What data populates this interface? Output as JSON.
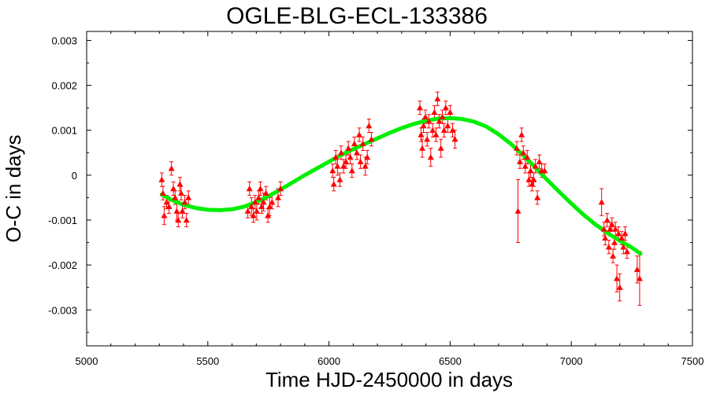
{
  "chart_data": {
    "type": "scatter",
    "title": "OGLE-BLG-ECL-133386",
    "xlabel": "Time HJD-2450000 in days",
    "ylabel": "O-C in days",
    "xlim": [
      5000,
      7500
    ],
    "ylim": [
      -0.0038,
      0.0032
    ],
    "xticks": [
      5000,
      5500,
      6000,
      6500,
      7000,
      7500
    ],
    "xtick_labels": [
      "5000",
      "5500",
      "6000",
      "6500",
      "7000",
      "7500"
    ],
    "yticks": [
      0.003,
      0.002,
      0.001,
      0,
      -0.001,
      -0.002,
      -0.003
    ],
    "ytick_labels": [
      "0.003",
      "0.002",
      "0.001",
      "0",
      "-0.001",
      "-0.002",
      "-0.003"
    ],
    "grid": false,
    "legend": "none",
    "series": [
      {
        "kind": "points-with-errorbars",
        "color": "#ff0000",
        "marker": "triangle",
        "points": [
          {
            "x": 5310,
            "y": -0.0001,
            "err": 0.00015
          },
          {
            "x": 5315,
            "y": -0.0004,
            "err": 0.00015
          },
          {
            "x": 5320,
            "y": -0.0009,
            "err": 0.0002
          },
          {
            "x": 5330,
            "y": -0.0006,
            "err": 0.00015
          },
          {
            "x": 5340,
            "y": -0.0007,
            "err": 0.00015
          },
          {
            "x": 5350,
            "y": 0.00015,
            "err": 0.00015
          },
          {
            "x": 5358,
            "y": -0.0003,
            "err": 0.00015
          },
          {
            "x": 5365,
            "y": -0.0005,
            "err": 0.00015
          },
          {
            "x": 5372,
            "y": -0.0008,
            "err": 0.0002
          },
          {
            "x": 5378,
            "y": -0.001,
            "err": 0.00015
          },
          {
            "x": 5385,
            "y": -0.0002,
            "err": 0.00015
          },
          {
            "x": 5390,
            "y": -0.0004,
            "err": 0.00015
          },
          {
            "x": 5395,
            "y": -0.0008,
            "err": 0.00015
          },
          {
            "x": 5405,
            "y": -0.0006,
            "err": 0.00015
          },
          {
            "x": 5412,
            "y": -0.001,
            "err": 0.00015
          },
          {
            "x": 5420,
            "y": -0.0005,
            "err": 0.00015
          },
          {
            "x": 5665,
            "y": -0.0008,
            "err": 0.00015
          },
          {
            "x": 5672,
            "y": -0.0003,
            "err": 0.00015
          },
          {
            "x": 5680,
            "y": -0.0007,
            "err": 0.0002
          },
          {
            "x": 5688,
            "y": -0.0009,
            "err": 0.00015
          },
          {
            "x": 5695,
            "y": -0.0006,
            "err": 0.00015
          },
          {
            "x": 5702,
            "y": -0.0008,
            "err": 0.0002
          },
          {
            "x": 5710,
            "y": -0.0005,
            "err": 0.00015
          },
          {
            "x": 5717,
            "y": -0.0003,
            "err": 0.00015
          },
          {
            "x": 5722,
            "y": -0.0007,
            "err": 0.00015
          },
          {
            "x": 5730,
            "y": -0.0006,
            "err": 0.0002
          },
          {
            "x": 5740,
            "y": -0.0004,
            "err": 0.00015
          },
          {
            "x": 5748,
            "y": -0.0009,
            "err": 0.00015
          },
          {
            "x": 5755,
            "y": -0.0007,
            "err": 0.0002
          },
          {
            "x": 5765,
            "y": -0.0006,
            "err": 0.00015
          },
          {
            "x": 5790,
            "y": -0.0005,
            "err": 0.0002
          },
          {
            "x": 5800,
            "y": -0.0003,
            "err": 0.00015
          },
          {
            "x": 6015,
            "y": 0.0001,
            "err": 0.00015
          },
          {
            "x": 6020,
            "y": -0.0002,
            "err": 0.00015
          },
          {
            "x": 6028,
            "y": 0.0004,
            "err": 0.00015
          },
          {
            "x": 6035,
            "y": 0.0002,
            "err": 0.0002
          },
          {
            "x": 6045,
            "y": -0.0001,
            "err": 0.00015
          },
          {
            "x": 6050,
            "y": 0.0005,
            "err": 0.00015
          },
          {
            "x": 6060,
            "y": 0.0002,
            "err": 0.00015
          },
          {
            "x": 6070,
            "y": 0.0003,
            "err": 0.00015
          },
          {
            "x": 6080,
            "y": 0.0006,
            "err": 0.00015
          },
          {
            "x": 6088,
            "y": 0.0004,
            "err": 0.00015
          },
          {
            "x": 6095,
            "y": 0.0001,
            "err": 0.00015
          },
          {
            "x": 6105,
            "y": 0.0007,
            "err": 0.00015
          },
          {
            "x": 6115,
            "y": 0.0005,
            "err": 0.00015
          },
          {
            "x": 6125,
            "y": 0.0009,
            "err": 0.00015
          },
          {
            "x": 6130,
            "y": 0.0003,
            "err": 0.00015
          },
          {
            "x": 6140,
            "y": 0.0007,
            "err": 0.00015
          },
          {
            "x": 6150,
            "y": 0.0002,
            "err": 0.0002
          },
          {
            "x": 6158,
            "y": 0.0004,
            "err": 0.00015
          },
          {
            "x": 6165,
            "y": 0.0011,
            "err": 0.00015
          },
          {
            "x": 6175,
            "y": 0.0008,
            "err": 0.00015
          },
          {
            "x": 6375,
            "y": 0.0015,
            "err": 0.00015
          },
          {
            "x": 6380,
            "y": 0.0009,
            "err": 0.00015
          },
          {
            "x": 6385,
            "y": 0.0006,
            "err": 0.0002
          },
          {
            "x": 6390,
            "y": 0.0011,
            "err": 0.00015
          },
          {
            "x": 6398,
            "y": 0.0013,
            "err": 0.00015
          },
          {
            "x": 6405,
            "y": 0.0008,
            "err": 0.00015
          },
          {
            "x": 6412,
            "y": 0.0012,
            "err": 0.00015
          },
          {
            "x": 6420,
            "y": 0.0004,
            "err": 0.0002
          },
          {
            "x": 6428,
            "y": 0.001,
            "err": 0.00015
          },
          {
            "x": 6435,
            "y": 0.0014,
            "err": 0.00015
          },
          {
            "x": 6442,
            "y": 0.0009,
            "err": 0.00015
          },
          {
            "x": 6448,
            "y": 0.0017,
            "err": 0.00015
          },
          {
            "x": 6455,
            "y": 0.0012,
            "err": 0.00015
          },
          {
            "x": 6462,
            "y": 0.0006,
            "err": 0.0002
          },
          {
            "x": 6468,
            "y": 0.0013,
            "err": 0.00015
          },
          {
            "x": 6475,
            "y": 0.001,
            "err": 0.00015
          },
          {
            "x": 6482,
            "y": 0.0015,
            "err": 0.00015
          },
          {
            "x": 6490,
            "y": 0.0011,
            "err": 0.00015
          },
          {
            "x": 6500,
            "y": 0.0014,
            "err": 0.00015
          },
          {
            "x": 6510,
            "y": 0.001,
            "err": 0.00015
          },
          {
            "x": 6520,
            "y": 0.0008,
            "err": 0.0002
          },
          {
            "x": 6775,
            "y": 0.0006,
            "err": 0.00015
          },
          {
            "x": 6780,
            "y": -0.0008,
            "err": 0.0007
          },
          {
            "x": 6788,
            "y": 0.0003,
            "err": 0.00015
          },
          {
            "x": 6795,
            "y": 0.0009,
            "err": 0.00015
          },
          {
            "x": 6802,
            "y": 0.0005,
            "err": 0.00015
          },
          {
            "x": 6810,
            "y": 0.0002,
            "err": 0.00015
          },
          {
            "x": 6818,
            "y": 0.0004,
            "err": 0.00015
          },
          {
            "x": 6825,
            "y": -0.0001,
            "err": 0.00015
          },
          {
            "x": 6832,
            "y": 0.0001,
            "err": 0.00015
          },
          {
            "x": 6838,
            "y": -0.0002,
            "err": 0.00015
          },
          {
            "x": 6845,
            "y": -0.0001,
            "err": 0.00015
          },
          {
            "x": 6852,
            "y": 0.0002,
            "err": 0.00015
          },
          {
            "x": 6860,
            "y": -0.0005,
            "err": 0.00015
          },
          {
            "x": 6868,
            "y": 0.0003,
            "err": 0.00015
          },
          {
            "x": 6878,
            "y": 0.0001,
            "err": 0.00015
          },
          {
            "x": 6890,
            "y": 0.0001,
            "err": 0.00015
          },
          {
            "x": 7125,
            "y": -0.0006,
            "err": 0.0003
          },
          {
            "x": 7135,
            "y": -0.0012,
            "err": 0.00015
          },
          {
            "x": 7140,
            "y": -0.0014,
            "err": 0.00015
          },
          {
            "x": 7148,
            "y": -0.001,
            "err": 0.00015
          },
          {
            "x": 7155,
            "y": -0.0016,
            "err": 0.00015
          },
          {
            "x": 7160,
            "y": -0.0012,
            "err": 0.00015
          },
          {
            "x": 7168,
            "y": -0.0011,
            "err": 0.00015
          },
          {
            "x": 7172,
            "y": -0.0018,
            "err": 0.00015
          },
          {
            "x": 7178,
            "y": -0.0015,
            "err": 0.00015
          },
          {
            "x": 7182,
            "y": -0.0012,
            "err": 0.00015
          },
          {
            "x": 7188,
            "y": -0.0023,
            "err": 0.0003
          },
          {
            "x": 7195,
            "y": -0.0013,
            "err": 0.00015
          },
          {
            "x": 7200,
            "y": -0.0025,
            "err": 0.0003
          },
          {
            "x": 7208,
            "y": -0.0014,
            "err": 0.00015
          },
          {
            "x": 7215,
            "y": -0.0016,
            "err": 0.00015
          },
          {
            "x": 7222,
            "y": -0.0013,
            "err": 0.00015
          },
          {
            "x": 7230,
            "y": -0.0017,
            "err": 0.00015
          },
          {
            "x": 7272,
            "y": -0.0021,
            "err": 0.0003
          },
          {
            "x": 7282,
            "y": -0.0023,
            "err": 0.0006
          }
        ]
      },
      {
        "kind": "fit-curve",
        "color": "#00ee00",
        "x": [
          5310,
          5350,
          5400,
          5450,
          5500,
          5550,
          5600,
          5650,
          5700,
          5750,
          5800,
          5850,
          5900,
          5950,
          6000,
          6050,
          6100,
          6150,
          6200,
          6250,
          6300,
          6350,
          6400,
          6450,
          6500,
          6550,
          6600,
          6650,
          6700,
          6750,
          6800,
          6850,
          6900,
          6950,
          7000,
          7050,
          7100,
          7150,
          7200,
          7250,
          7285
        ],
        "y": [
          -0.00043,
          -0.00055,
          -0.00066,
          -0.00073,
          -0.00077,
          -0.00078,
          -0.00076,
          -0.0007,
          -0.0006,
          -0.00047,
          -0.00032,
          -0.00016,
          0.0,
          0.00015,
          0.0003,
          0.00045,
          0.00058,
          0.0007,
          0.00082,
          0.00094,
          0.00105,
          0.00114,
          0.00121,
          0.00126,
          0.00127,
          0.00125,
          0.00119,
          0.00108,
          0.00091,
          0.0007,
          0.00045,
          0.00018,
          -0.0001,
          -0.00037,
          -0.00063,
          -0.00088,
          -0.0011,
          -0.00129,
          -0.00146,
          -0.00161,
          -0.00175
        ]
      }
    ]
  }
}
